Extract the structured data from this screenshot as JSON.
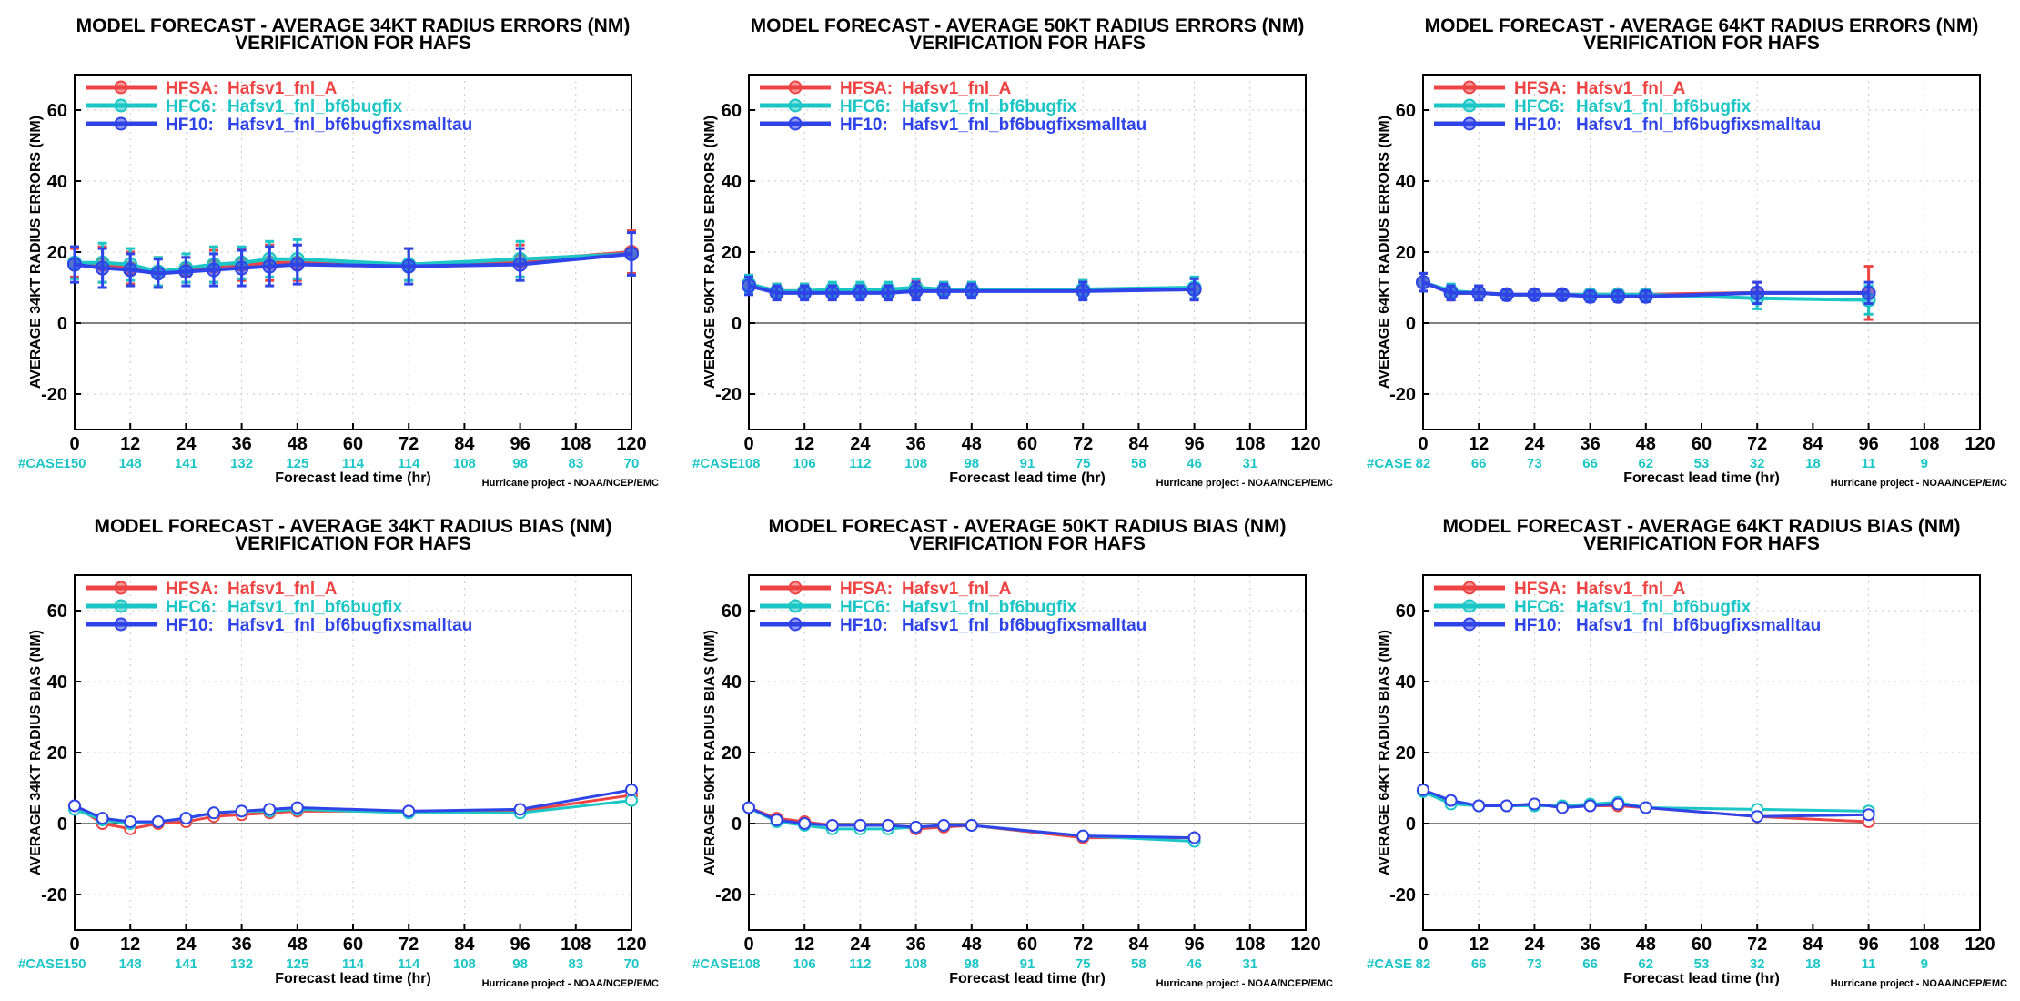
{
  "colors": {
    "HFSA": "#ee4444",
    "HFC6": "#1cc6c6",
    "HF10": "#2f44e8",
    "case": "#1cc6c6"
  },
  "case_label": "#CASE",
  "xlabel": "Forecast lead time (hr)",
  "credit": "Hurricane project - NOAA/NCEP/EMC",
  "legend": [
    {
      "model": "HFSA:",
      "desc": "Hafsv1_fnl_A",
      "key": "HFSA"
    },
    {
      "model": "HFC6:",
      "desc": "Hafsv1_fnl_bf6bugfix",
      "key": "HFC6"
    },
    {
      "model": "HF10:",
      "desc": "Hafsv1_fnl_bf6bugfixsmalltau",
      "key": "HF10"
    }
  ],
  "chart_data": [
    {
      "type": "line",
      "title": "MODEL FORECAST - AVERAGE 34KT RADIUS ERRORS (NM)",
      "subtitle": "VERIFICATION FOR HAFS",
      "ylabel": "AVERAGE 34KT RADIUS ERRORS (NM)",
      "xlim": [
        0,
        120
      ],
      "ylim": [
        -30,
        70
      ],
      "xticks": [
        0,
        12,
        24,
        36,
        48,
        60,
        72,
        84,
        96,
        108,
        120
      ],
      "yticks": [
        -20,
        0,
        20,
        40,
        60
      ],
      "cases": [
        "150",
        "148",
        "141",
        "132",
        "125",
        "114",
        "114",
        "108",
        "98",
        "83",
        "70"
      ],
      "error_bars": true,
      "series": [
        {
          "name": "HFSA",
          "x": [
            0,
            6,
            12,
            18,
            24,
            30,
            36,
            42,
            48,
            72,
            96,
            120
          ],
          "y": [
            17,
            16.5,
            15.5,
            14.5,
            15,
            16,
            16.5,
            17,
            17,
            16.5,
            17.5,
            20
          ],
          "err": [
            4,
            5,
            4.5,
            4,
            3.5,
            4.5,
            4.5,
            5,
            5,
            4.5,
            4.5,
            6
          ]
        },
        {
          "name": "HFC6",
          "x": [
            0,
            6,
            12,
            18,
            24,
            30,
            36,
            42,
            48,
            72,
            96,
            120
          ],
          "y": [
            17,
            17,
            16.5,
            14.5,
            15.5,
            16.5,
            17,
            18,
            18,
            16.5,
            18,
            19.5
          ],
          "err": [
            4.5,
            5.5,
            4.5,
            4,
            4,
            5,
            4.5,
            5,
            5.5,
            4.5,
            5,
            6
          ]
        },
        {
          "name": "HF10",
          "x": [
            0,
            6,
            12,
            18,
            24,
            30,
            36,
            42,
            48,
            72,
            96,
            120
          ],
          "y": [
            16.5,
            15.5,
            15,
            14,
            14.5,
            15,
            15.5,
            16,
            16.5,
            16,
            16.5,
            19.5
          ],
          "err": [
            5,
            5.5,
            4.5,
            4,
            4,
            4.5,
            5,
            5.5,
            5.5,
            5,
            4.5,
            6
          ]
        }
      ]
    },
    {
      "type": "line",
      "title": "MODEL FORECAST - AVERAGE 50KT RADIUS ERRORS (NM)",
      "subtitle": "VERIFICATION FOR HAFS",
      "ylabel": "AVERAGE 50KT RADIUS ERRORS (NM)",
      "xlim": [
        0,
        120
      ],
      "ylim": [
        -30,
        70
      ],
      "xticks": [
        0,
        12,
        24,
        36,
        48,
        60,
        72,
        84,
        96,
        108,
        120
      ],
      "yticks": [
        -20,
        0,
        20,
        40,
        60
      ],
      "cases": [
        "108",
        "106",
        "112",
        "108",
        "98",
        "91",
        "75",
        "58",
        "46",
        "31",
        ""
      ],
      "error_bars": true,
      "series": [
        {
          "name": "HFSA",
          "x": [
            0,
            6,
            12,
            18,
            24,
            30,
            36,
            42,
            48,
            72,
            96
          ],
          "y": [
            11,
            9,
            9,
            9,
            9,
            9,
            9.5,
            9.5,
            9.5,
            9.5,
            9.5
          ],
          "err": [
            2.5,
            2,
            2,
            2,
            2,
            2,
            2.5,
            2,
            2,
            2.5,
            3
          ]
        },
        {
          "name": "HFC6",
          "x": [
            0,
            6,
            12,
            18,
            24,
            30,
            36,
            42,
            48,
            72,
            96
          ],
          "y": [
            11,
            9,
            9,
            9.5,
            9.5,
            9.5,
            10,
            9.5,
            9.5,
            9.5,
            10
          ],
          "err": [
            2.5,
            2,
            2,
            2,
            2,
            2,
            2.5,
            2,
            2,
            2.5,
            3
          ]
        },
        {
          "name": "HF10",
          "x": [
            0,
            6,
            12,
            18,
            24,
            30,
            36,
            42,
            48,
            72,
            96
          ],
          "y": [
            10.5,
            8.5,
            8.5,
            8.5,
            8.5,
            8.5,
            9,
            9,
            9,
            9,
            9.5
          ],
          "err": [
            2.5,
            2,
            2,
            2,
            2,
            2,
            2.5,
            2,
            2,
            2.5,
            3
          ]
        }
      ]
    },
    {
      "type": "line",
      "title": "MODEL FORECAST - AVERAGE 64KT RADIUS ERRORS (NM)",
      "subtitle": "VERIFICATION FOR HAFS",
      "ylabel": "AVERAGE 64KT RADIUS ERRORS (NM)",
      "xlim": [
        0,
        120
      ],
      "ylim": [
        -30,
        70
      ],
      "xticks": [
        0,
        12,
        24,
        36,
        48,
        60,
        72,
        84,
        96,
        108,
        120
      ],
      "yticks": [
        -20,
        0,
        20,
        40,
        60
      ],
      "cases": [
        "82",
        "66",
        "73",
        "66",
        "62",
        "53",
        "32",
        "18",
        "11",
        "9",
        ""
      ],
      "error_bars": true,
      "series": [
        {
          "name": "HFSA",
          "x": [
            0,
            6,
            12,
            18,
            24,
            30,
            36,
            42,
            48,
            72,
            96
          ],
          "y": [
            11.5,
            8.5,
            8.5,
            8,
            8,
            8,
            8,
            8,
            8,
            8.5,
            8.5
          ],
          "err": [
            2.5,
            2,
            2,
            1.5,
            1.5,
            1.5,
            1.5,
            1.5,
            1.5,
            3,
            7.5
          ]
        },
        {
          "name": "HFC6",
          "x": [
            0,
            6,
            12,
            18,
            24,
            30,
            36,
            42,
            48,
            72,
            96
          ],
          "y": [
            11.5,
            9,
            8.5,
            8,
            8,
            8,
            8,
            8,
            8,
            7,
            6.5
          ],
          "err": [
            2.5,
            2,
            2,
            1.5,
            1.5,
            1.5,
            1.5,
            1.5,
            1.5,
            3,
            4
          ]
        },
        {
          "name": "HF10",
          "x": [
            0,
            6,
            12,
            18,
            24,
            30,
            36,
            42,
            48,
            72,
            96
          ],
          "y": [
            11.5,
            8.5,
            8.5,
            8,
            8,
            8,
            7.5,
            7.5,
            7.5,
            8.5,
            8.5
          ],
          "err": [
            2.5,
            2,
            2,
            1.5,
            1.5,
            1.5,
            1.5,
            1.5,
            1.5,
            3,
            3
          ]
        }
      ]
    },
    {
      "type": "line",
      "title": "MODEL FORECAST - AVERAGE 34KT RADIUS BIAS (NM)",
      "subtitle": "VERIFICATION FOR HAFS",
      "ylabel": "AVERAGE 34KT RADIUS BIAS (NM)",
      "xlim": [
        0,
        120
      ],
      "ylim": [
        -30,
        70
      ],
      "xticks": [
        0,
        12,
        24,
        36,
        48,
        60,
        72,
        84,
        96,
        108,
        120
      ],
      "yticks": [
        -20,
        0,
        20,
        40,
        60
      ],
      "cases": [
        "150",
        "148",
        "141",
        "132",
        "125",
        "114",
        "114",
        "108",
        "98",
        "83",
        "70"
      ],
      "error_bars": false,
      "series": [
        {
          "name": "HFSA",
          "x": [
            0,
            6,
            12,
            18,
            24,
            30,
            36,
            42,
            48,
            72,
            96,
            120
          ],
          "y": [
            5,
            0,
            -1.5,
            0,
            0.5,
            2,
            2.5,
            3,
            3.5,
            3.5,
            3.5,
            8
          ]
        },
        {
          "name": "HFC6",
          "x": [
            0,
            6,
            12,
            18,
            24,
            30,
            36,
            42,
            48,
            72,
            96,
            120
          ],
          "y": [
            4,
            1,
            0,
            0.5,
            1.5,
            3,
            3.5,
            3.5,
            4,
            3,
            3,
            6.5
          ]
        },
        {
          "name": "HF10",
          "x": [
            0,
            6,
            12,
            18,
            24,
            30,
            36,
            42,
            48,
            72,
            96,
            120
          ],
          "y": [
            5,
            1.5,
            0.5,
            0.5,
            1.5,
            3,
            3.5,
            4,
            4.5,
            3.5,
            4,
            9.5
          ]
        }
      ]
    },
    {
      "type": "line",
      "title": "MODEL FORECAST - AVERAGE 50KT RADIUS BIAS (NM)",
      "subtitle": "VERIFICATION FOR HAFS",
      "ylabel": "AVERAGE 50KT RADIUS BIAS (NM)",
      "xlim": [
        0,
        120
      ],
      "ylim": [
        -30,
        70
      ],
      "xticks": [
        0,
        12,
        24,
        36,
        48,
        60,
        72,
        84,
        96,
        108,
        120
      ],
      "yticks": [
        -20,
        0,
        20,
        40,
        60
      ],
      "cases": [
        "108",
        "106",
        "112",
        "108",
        "98",
        "91",
        "75",
        "58",
        "46",
        "31",
        ""
      ],
      "error_bars": false,
      "series": [
        {
          "name": "HFSA",
          "x": [
            0,
            6,
            12,
            18,
            24,
            30,
            36,
            42,
            48,
            72,
            96
          ],
          "y": [
            4.5,
            1.5,
            0.5,
            -0.5,
            -0.5,
            -0.5,
            -1.5,
            -1,
            -0.5,
            -4,
            -4
          ]
        },
        {
          "name": "HFC6",
          "x": [
            0,
            6,
            12,
            18,
            24,
            30,
            36,
            42,
            48,
            72,
            96
          ],
          "y": [
            4.5,
            0.5,
            -0.5,
            -1.5,
            -1.5,
            -1.5,
            -1,
            -0.5,
            -0.5,
            -3.5,
            -5
          ]
        },
        {
          "name": "HF10",
          "x": [
            0,
            6,
            12,
            18,
            24,
            30,
            36,
            42,
            48,
            72,
            96
          ],
          "y": [
            4.5,
            1,
            0,
            -0.5,
            -0.5,
            -0.5,
            -1,
            -0.5,
            -0.5,
            -3.5,
            -4
          ]
        }
      ]
    },
    {
      "type": "line",
      "title": "MODEL FORECAST - AVERAGE 64KT RADIUS BIAS (NM)",
      "subtitle": "VERIFICATION FOR HAFS",
      "ylabel": "AVERAGE 64KT RADIUS BIAS (NM)",
      "xlim": [
        0,
        120
      ],
      "ylim": [
        -30,
        70
      ],
      "xticks": [
        0,
        12,
        24,
        36,
        48,
        60,
        72,
        84,
        96,
        108,
        120
      ],
      "yticks": [
        -20,
        0,
        20,
        40,
        60
      ],
      "cases": [
        "82",
        "66",
        "73",
        "66",
        "62",
        "53",
        "32",
        "18",
        "11",
        "9",
        ""
      ],
      "error_bars": false,
      "series": [
        {
          "name": "HFSA",
          "x": [
            0,
            6,
            12,
            18,
            24,
            30,
            36,
            42,
            48,
            72,
            96
          ],
          "y": [
            9.5,
            6,
            5,
            5,
            5.5,
            4.5,
            5,
            5,
            4.5,
            2,
            0.5
          ]
        },
        {
          "name": "HFC6",
          "x": [
            0,
            6,
            12,
            18,
            24,
            30,
            36,
            42,
            48,
            72,
            96
          ],
          "y": [
            9,
            5.5,
            5,
            5,
            5,
            5,
            5.5,
            6,
            4.5,
            4,
            3.5
          ]
        },
        {
          "name": "HF10",
          "x": [
            0,
            6,
            12,
            18,
            24,
            30,
            36,
            42,
            48,
            72,
            96
          ],
          "y": [
            9.5,
            6.5,
            5,
            5,
            5.5,
            4.5,
            5,
            5.5,
            4.5,
            2,
            2.5
          ]
        }
      ]
    }
  ]
}
